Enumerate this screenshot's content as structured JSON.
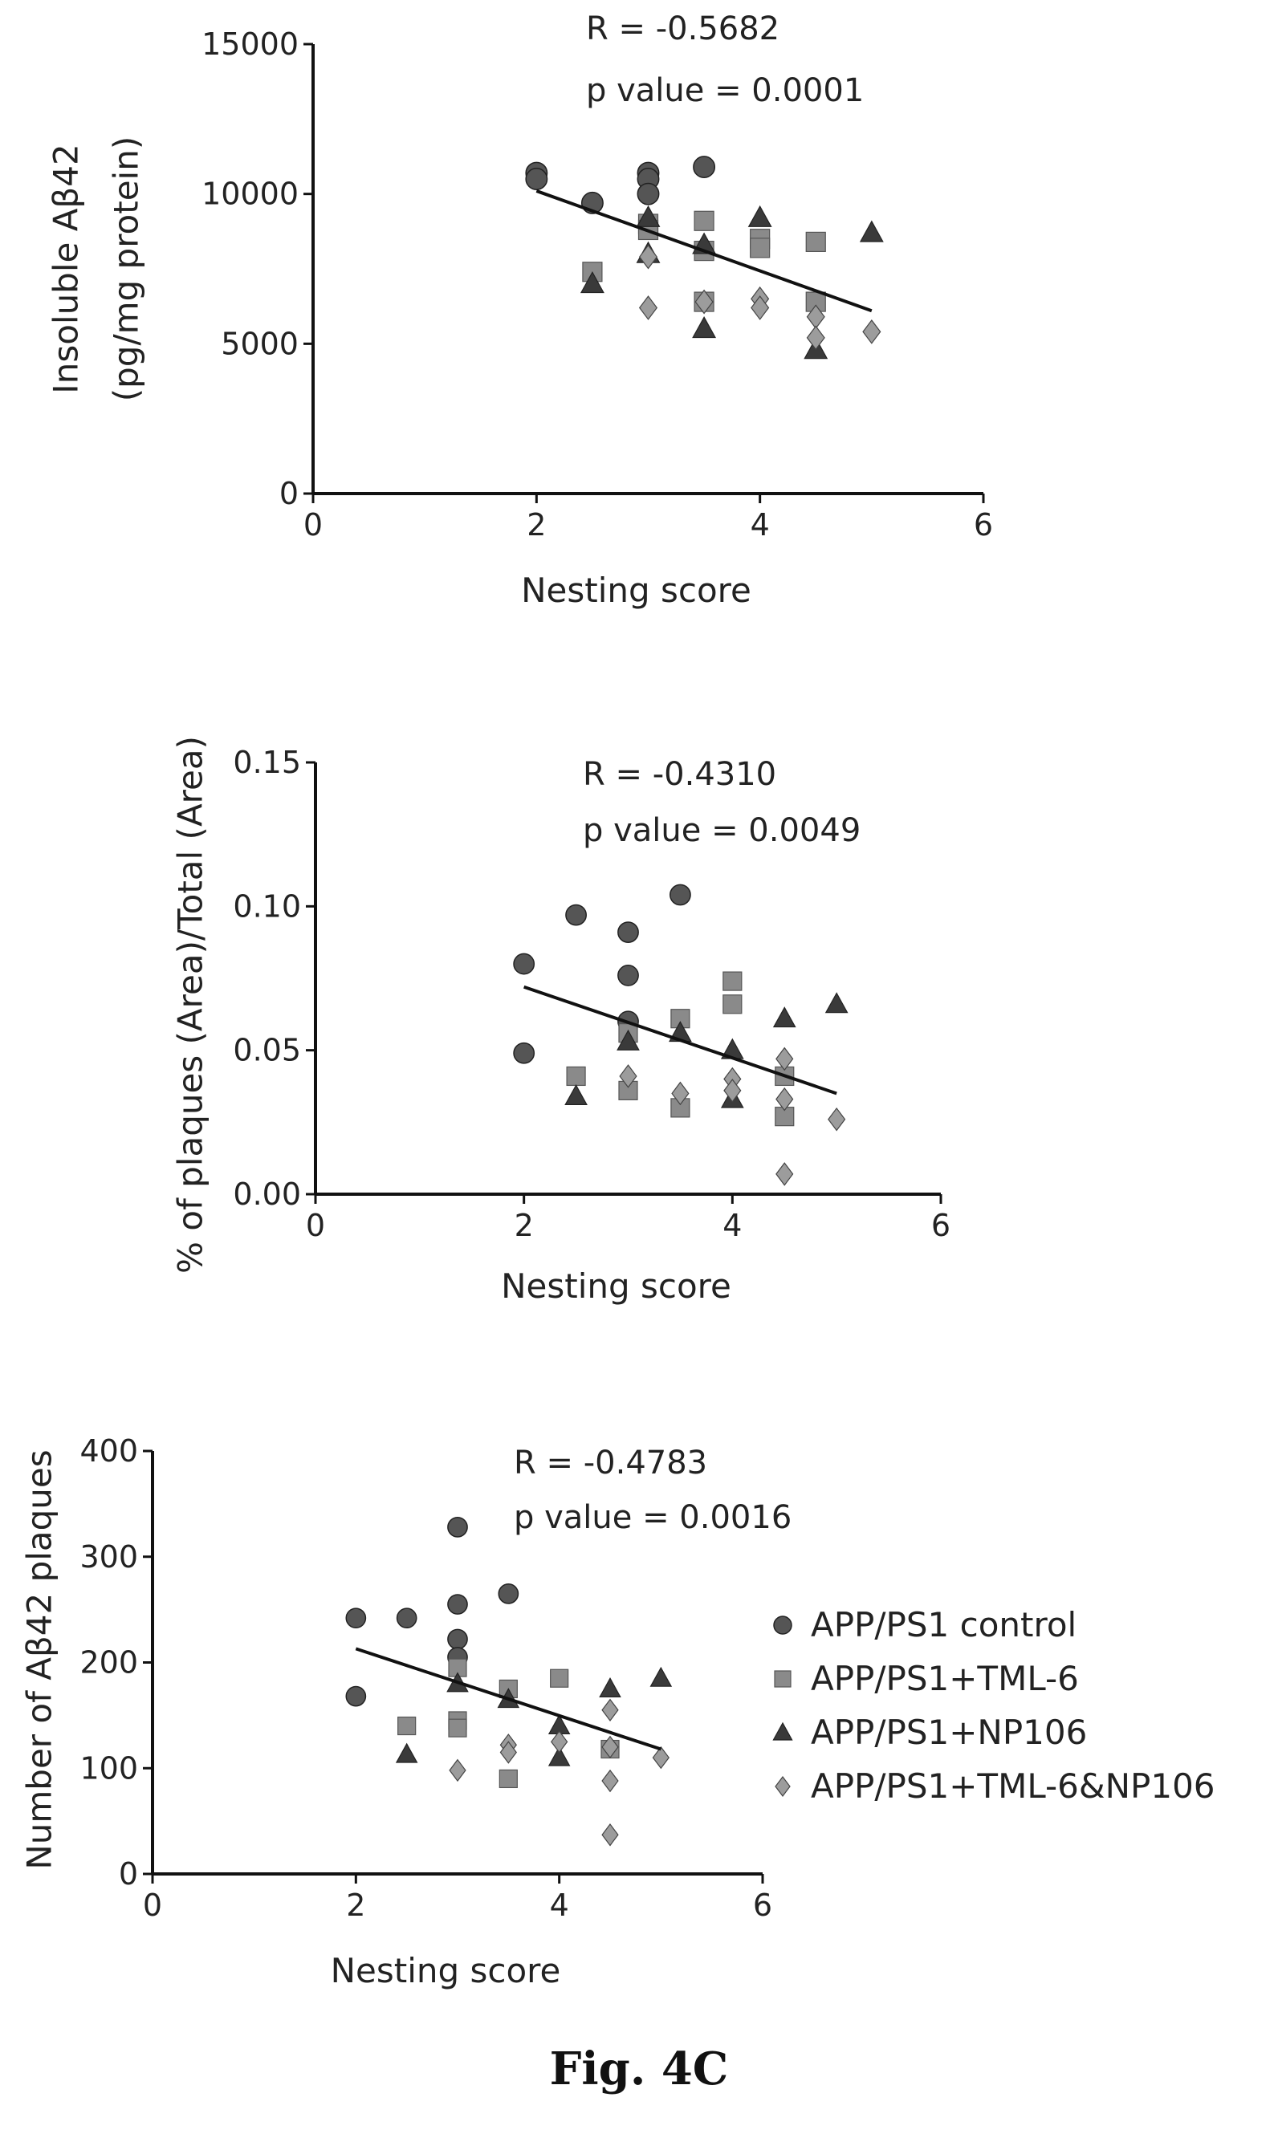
{
  "caption": "Fig. 4C",
  "colors": {
    "axis": "#111111",
    "fit_line": "#111111",
    "APP/PS1 control": "#555555",
    "APP/PS1+TML-6": "#8a8a8a",
    "APP/PS1+NP106": "#3a3a3a",
    "APP/PS1+TML-6&NP106": "#9c9c9c"
  },
  "legend": {
    "placement": "right of bottom panel",
    "entries": [
      {
        "label": "APP/PS1 control",
        "marker": "circle"
      },
      {
        "label": "APP/PS1+TML-6",
        "marker": "square"
      },
      {
        "label": "APP/PS1+NP106",
        "marker": "triangle"
      },
      {
        "label": "APP/PS1+TML-6&NP106",
        "marker": "diamond"
      }
    ]
  },
  "chart_data": [
    {
      "type": "scatter",
      "xlabel": "Nesting score",
      "ylabel": [
        "Insoluble Aβ42",
        "(pg/mg protein)"
      ],
      "xlim": [
        0,
        6
      ],
      "ylim": [
        0,
        15000
      ],
      "xticks": [
        "0",
        "2",
        "4",
        "6"
      ],
      "yticks": [
        "0",
        "5000",
        "10000",
        "15000"
      ],
      "stats": [
        "R = -0.5682",
        "p value = 0.0001"
      ],
      "fit": {
        "x": [
          2,
          5
        ],
        "y": [
          10100,
          6100
        ]
      },
      "series": [
        {
          "name": "APP/PS1 control",
          "marker": "circle",
          "points": [
            [
              2,
              10700
            ],
            [
              2,
              10500
            ],
            [
              2.5,
              9700
            ],
            [
              3,
              10700
            ],
            [
              3,
              10500
            ],
            [
              3,
              10000
            ],
            [
              3.5,
              10900
            ]
          ]
        },
        {
          "name": "APP/PS1+TML-6",
          "marker": "square",
          "points": [
            [
              2.5,
              7400
            ],
            [
              3,
              9000
            ],
            [
              3,
              8800
            ],
            [
              3.5,
              9100
            ],
            [
              3.5,
              8100
            ],
            [
              3.5,
              6400
            ],
            [
              4,
              8500
            ],
            [
              4,
              8200
            ],
            [
              4.5,
              8400
            ],
            [
              4.5,
              6400
            ]
          ]
        },
        {
          "name": "APP/PS1+NP106",
          "marker": "triangle",
          "points": [
            [
              2.5,
              7000
            ],
            [
              3,
              8000
            ],
            [
              3,
              9200
            ],
            [
              3.5,
              5500
            ],
            [
              3.5,
              8300
            ],
            [
              4,
              9200
            ],
            [
              4.5,
              4800
            ],
            [
              5,
              8700
            ]
          ]
        },
        {
          "name": "APP/PS1+TML-6&NP106",
          "marker": "diamond",
          "points": [
            [
              3,
              6200
            ],
            [
              3,
              7900
            ],
            [
              3.5,
              6400
            ],
            [
              4,
              6500
            ],
            [
              4,
              6200
            ],
            [
              4.5,
              5900
            ],
            [
              4.5,
              5200
            ],
            [
              5,
              5400
            ]
          ]
        }
      ]
    },
    {
      "type": "scatter",
      "xlabel": "Nesting score",
      "ylabel": [
        "% of plaques (Area)/Total (Area)"
      ],
      "xlim": [
        0,
        6
      ],
      "ylim": [
        0,
        0.15
      ],
      "xticks": [
        "0",
        "2",
        "4",
        "6"
      ],
      "yticks": [
        "0.00",
        "0.05",
        "0.10",
        "0.15"
      ],
      "stats": [
        "R = -0.4310",
        "p value = 0.0049"
      ],
      "fit": {
        "x": [
          2,
          5
        ],
        "y": [
          0.072,
          0.035
        ]
      },
      "series": [
        {
          "name": "APP/PS1 control",
          "marker": "circle",
          "points": [
            [
              2,
              0.08
            ],
            [
              2,
              0.049
            ],
            [
              2.5,
              0.097
            ],
            [
              3,
              0.091
            ],
            [
              3,
              0.076
            ],
            [
              3,
              0.06
            ],
            [
              3.5,
              0.104
            ]
          ]
        },
        {
          "name": "APP/PS1+TML-6",
          "marker": "square",
          "points": [
            [
              2.5,
              0.041
            ],
            [
              3,
              0.036
            ],
            [
              3,
              0.056
            ],
            [
              3.5,
              0.03
            ],
            [
              3.5,
              0.061
            ],
            [
              4,
              0.074
            ],
            [
              4,
              0.066
            ],
            [
              4.5,
              0.041
            ],
            [
              4.5,
              0.027
            ]
          ]
        },
        {
          "name": "APP/PS1+NP106",
          "marker": "triangle",
          "points": [
            [
              2.5,
              0.034
            ],
            [
              3,
              0.053
            ],
            [
              3.5,
              0.056
            ],
            [
              4,
              0.05
            ],
            [
              4,
              0.033
            ],
            [
              4.5,
              0.061
            ],
            [
              5,
              0.066
            ]
          ]
        },
        {
          "name": "APP/PS1+TML-6&NP106",
          "marker": "diamond",
          "points": [
            [
              3,
              0.041
            ],
            [
              3.5,
              0.035
            ],
            [
              4,
              0.04
            ],
            [
              4,
              0.036
            ],
            [
              4.5,
              0.047
            ],
            [
              4.5,
              0.033
            ],
            [
              4.5,
              0.007
            ],
            [
              5,
              0.026
            ]
          ]
        }
      ]
    },
    {
      "type": "scatter",
      "xlabel": "Nesting score",
      "ylabel": [
        "Number of Aβ42 plaques"
      ],
      "xlim": [
        0,
        6
      ],
      "ylim": [
        0,
        400
      ],
      "xticks": [
        "0",
        "2",
        "4",
        "6"
      ],
      "yticks": [
        "0",
        "100",
        "200",
        "300",
        "400"
      ],
      "stats": [
        "R = -0.4783",
        "p value = 0.0016"
      ],
      "fit": {
        "x": [
          2,
          5
        ],
        "y": [
          213,
          118
        ]
      },
      "series": [
        {
          "name": "APP/PS1 control",
          "marker": "circle",
          "points": [
            [
              2,
              242
            ],
            [
              2,
              168
            ],
            [
              2.5,
              242
            ],
            [
              3,
              328
            ],
            [
              3,
              255
            ],
            [
              3,
              222
            ],
            [
              3,
              205
            ],
            [
              3.5,
              265
            ]
          ]
        },
        {
          "name": "APP/PS1+TML-6",
          "marker": "square",
          "points": [
            [
              2.5,
              140
            ],
            [
              3,
              145
            ],
            [
              3,
              138
            ],
            [
              3,
              195
            ],
            [
              3.5,
              90
            ],
            [
              3.5,
              175
            ],
            [
              4,
              185
            ],
            [
              4.5,
              118
            ]
          ]
        },
        {
          "name": "APP/PS1+NP106",
          "marker": "triangle",
          "points": [
            [
              2.5,
              113
            ],
            [
              3,
              180
            ],
            [
              3.5,
              165
            ],
            [
              4,
              140
            ],
            [
              4,
              110
            ],
            [
              4.5,
              175
            ],
            [
              5,
              185
            ]
          ]
        },
        {
          "name": "APP/PS1+TML-6&NP106",
          "marker": "diamond",
          "points": [
            [
              3,
              98
            ],
            [
              3.5,
              122
            ],
            [
              3.5,
              115
            ],
            [
              4,
              125
            ],
            [
              4.5,
              155
            ],
            [
              4.5,
              120
            ],
            [
              4.5,
              88
            ],
            [
              4.5,
              37
            ],
            [
              5,
              110
            ]
          ]
        }
      ]
    }
  ]
}
